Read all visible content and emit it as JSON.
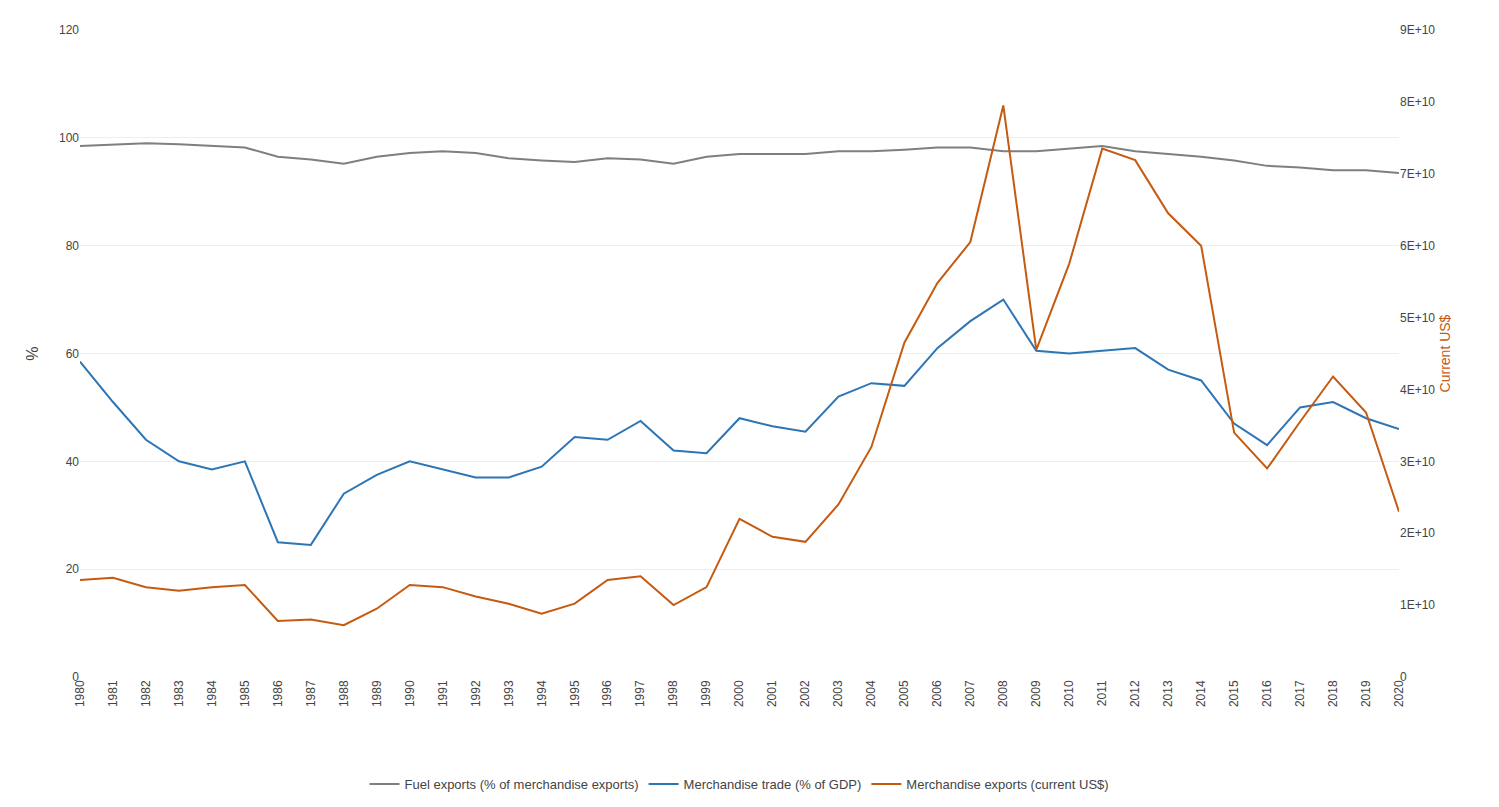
{
  "chart_data": {
    "type": "line",
    "x": [
      1980,
      1981,
      1982,
      1983,
      1984,
      1985,
      1986,
      1987,
      1988,
      1989,
      1990,
      1991,
      1992,
      1993,
      1994,
      1995,
      1996,
      1997,
      1998,
      1999,
      2000,
      2001,
      2002,
      2003,
      2004,
      2005,
      2006,
      2007,
      2008,
      2009,
      2010,
      2011,
      2012,
      2013,
      2014,
      2015,
      2016,
      2017,
      2018,
      2019,
      2020
    ],
    "xlim": [
      1980,
      2020
    ],
    "xticks": [
      1980,
      1981,
      1982,
      1983,
      1984,
      1985,
      1986,
      1987,
      1988,
      1989,
      1990,
      1991,
      1992,
      1993,
      1994,
      1995,
      1996,
      1997,
      1998,
      1999,
      2000,
      2001,
      2002,
      2003,
      2004,
      2005,
      2006,
      2007,
      2008,
      2009,
      2010,
      2011,
      2012,
      2013,
      2014,
      2015,
      2016,
      2017,
      2018,
      2019,
      2020
    ],
    "ylabel": "%",
    "y2label": "Current US$",
    "ylim": [
      0,
      120
    ],
    "yticks": [
      0,
      20,
      40,
      60,
      80,
      100,
      120
    ],
    "y2lim": [
      0,
      90000000000.0
    ],
    "y2ticks": [
      0,
      {
        "value": 10000000000.0,
        "label": "1E+10"
      },
      {
        "value": 20000000000.0,
        "label": "2E+10"
      },
      {
        "value": 30000000000.0,
        "label": "3E+10"
      },
      {
        "value": 40000000000.0,
        "label": "4E+10"
      },
      {
        "value": 50000000000.0,
        "label": "5E+10"
      },
      {
        "value": 60000000000.0,
        "label": "6E+10"
      },
      {
        "value": 70000000000.0,
        "label": "7E+10"
      },
      {
        "value": 80000000000.0,
        "label": "8E+10"
      },
      {
        "value": 90000000000.0,
        "label": "9E+10"
      }
    ],
    "grid": true,
    "legend": "bottom",
    "series": [
      {
        "name": "Fuel exports (% of merchandise exports)",
        "color": "#7f7f7f",
        "values": [
          98.5,
          98.8,
          99.0,
          98.8,
          98.5,
          98.2,
          96.5,
          96.0,
          95.2,
          96.5,
          97.2,
          97.5,
          97.2,
          96.2,
          95.8,
          95.5,
          96.2,
          96.0,
          95.2,
          96.5,
          97.0,
          97.0,
          97.0,
          97.5,
          97.5,
          97.8,
          98.2,
          98.2,
          97.5,
          97.5,
          98.0,
          98.5,
          97.5,
          97.0,
          96.5,
          95.8,
          94.8,
          94.5,
          94.0,
          94.0,
          93.5
        ]
      },
      {
        "name": "Merchandise trade (% of GDP)",
        "color": "#2e75b6",
        "values": [
          58.5,
          51.0,
          44.0,
          40.0,
          38.5,
          40.0,
          25.0,
          24.5,
          34.0,
          37.5,
          40.0,
          38.5,
          37.0,
          37.0,
          39.0,
          44.5,
          44.0,
          47.5,
          42.0,
          41.5,
          48.0,
          46.5,
          45.5,
          52.0,
          54.5,
          54.0,
          61.0,
          66.0,
          70.0,
          60.5,
          60.0,
          60.5,
          61.0,
          57.0,
          55.0,
          47.0,
          43.0,
          50.0,
          51.0,
          48.0,
          46.0
        ]
      },
      {
        "name": "Merchandise exports (current US$)",
        "color": "#c55a11",
        "axis": "y2",
        "values": [
          13500000000.0,
          13800000000.0,
          12500000000.0,
          12000000000.0,
          12500000000.0,
          12800000000.0,
          7800000000.0,
          8000000000.0,
          7200000000.0,
          9500000000.0,
          12800000000.0,
          12500000000.0,
          11200000000.0,
          10200000000.0,
          8800000000.0,
          10200000000.0,
          13500000000.0,
          14000000000.0,
          10000000000.0,
          12500000000.0,
          22000000000.0,
          19500000000.0,
          18800000000.0,
          24000000000.0,
          32000000000.0,
          46500000000.0,
          54800000000.0,
          60500000000.0,
          79500000000.0,
          45500000000.0,
          57500000000.0,
          73500000000.0,
          71900000000.0,
          64500000000.0,
          60000000000.0,
          34000000000.0,
          29000000000.0,
          35500000000.0,
          41800000000.0,
          36800000000.0,
          23000000000.0
        ]
      }
    ]
  }
}
